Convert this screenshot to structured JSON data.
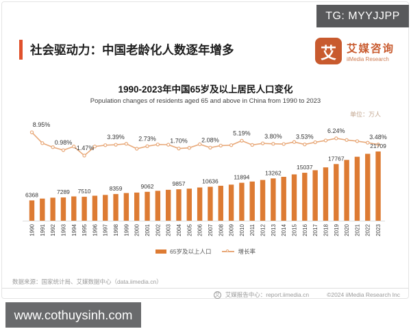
{
  "watermark_top": "TG: MYYJJPP",
  "header": {
    "title": "社会驱动力：中国老龄化人数逐年增多",
    "accent_color": "#e0512c",
    "logo": {
      "mark": "艾",
      "name_cn": "艾媒咨询",
      "name_en": "iiMedia Research"
    }
  },
  "chart": {
    "title": "1990-2023年中国65岁及以上居民人口变化",
    "subtitle": "Population changes of residents aged 65 and above in China from 1990 to 2023",
    "unit": "单位：万人"
  },
  "chart_data": {
    "type": "bar+line",
    "title": "1990-2023年中国65岁及以上居民人口变化",
    "unit": "万人",
    "legend_position": "bottom",
    "grid": false,
    "categories": [
      "1990",
      "1991",
      "1992",
      "1993",
      "1994",
      "1995",
      "1996",
      "1997",
      "1998",
      "1999",
      "2000",
      "2001",
      "2002",
      "2003",
      "2004",
      "2005",
      "2006",
      "2007",
      "2008",
      "2009",
      "2010",
      "2011",
      "2012",
      "2013",
      "2014",
      "2015",
      "2016",
      "2017",
      "2018",
      "2019",
      "2020",
      "2021",
      "2022",
      "2023"
    ],
    "series": [
      {
        "name": "65岁及以上人口",
        "type": "bar",
        "color": "#dd7b33",
        "values": [
          6368,
          6938,
          7218,
          7289,
          7622,
          7510,
          7833,
          8085,
          8359,
          8679,
          8821,
          9062,
          9377,
          9692,
          9857,
          10055,
          10419,
          10636,
          10956,
          11307,
          11894,
          12288,
          12777,
          13262,
          13755,
          14524,
          15037,
          15831,
          16724,
          17767,
          19064,
          20056,
          20978,
          21709
        ]
      },
      {
        "name": "增长率",
        "type": "line",
        "color": "#e8a878",
        "values": [
          8.95,
          4.1,
          2.3,
          0.98,
          2.6,
          -1.47,
          2.6,
          3.2,
          3.39,
          3.8,
          1.6,
          2.73,
          3.5,
          3.4,
          1.7,
          2.0,
          3.6,
          2.08,
          3.0,
          3.2,
          5.19,
          3.3,
          4.0,
          3.8,
          3.7,
          4.6,
          3.53,
          4.5,
          5.3,
          6.24,
          5.5,
          5.0,
          4.3,
          3.48
        ]
      }
    ],
    "labeled_points": [
      {
        "i": 0,
        "year": "1990",
        "pop": "6368",
        "rate": "8.95%"
      },
      {
        "i": 3,
        "year": "1993",
        "pop": "7289",
        "rate": "0.98%"
      },
      {
        "i": 5,
        "year": "1995",
        "pop": "7510",
        "rate": "-1.47%"
      },
      {
        "i": 8,
        "year": "1998",
        "pop": "8359",
        "rate": "3.39%"
      },
      {
        "i": 11,
        "year": "2001",
        "pop": "9062",
        "rate": "2.73%"
      },
      {
        "i": 14,
        "year": "2004",
        "pop": "9857",
        "rate": "1.70%"
      },
      {
        "i": 17,
        "year": "2007",
        "pop": "10636",
        "rate": "2.08%"
      },
      {
        "i": 20,
        "year": "2010",
        "pop": "11894",
        "rate": "5.19%"
      },
      {
        "i": 23,
        "year": "2013",
        "pop": "13262",
        "rate": "3.80%"
      },
      {
        "i": 26,
        "year": "2016",
        "pop": "15037",
        "rate": "3.53%"
      },
      {
        "i": 29,
        "year": "2019",
        "pop": "17767",
        "rate": "6.24%"
      },
      {
        "i": 33,
        "year": "2023",
        "pop": "21709",
        "rate": "3.48%"
      }
    ]
  },
  "legend": {
    "bar_label": "65岁及以上人口",
    "line_label": "增长率"
  },
  "footer": {
    "source": "数据来源：国家统计局、艾媒数据中心（data.iimedia.cn）",
    "report_icon": "艾",
    "report_center": "艾媒报告中心：report.iimedia.cn",
    "copyright": "©2024  iiMedia Research Inc"
  },
  "watermark_bottom": "www.cothuysinh.com"
}
